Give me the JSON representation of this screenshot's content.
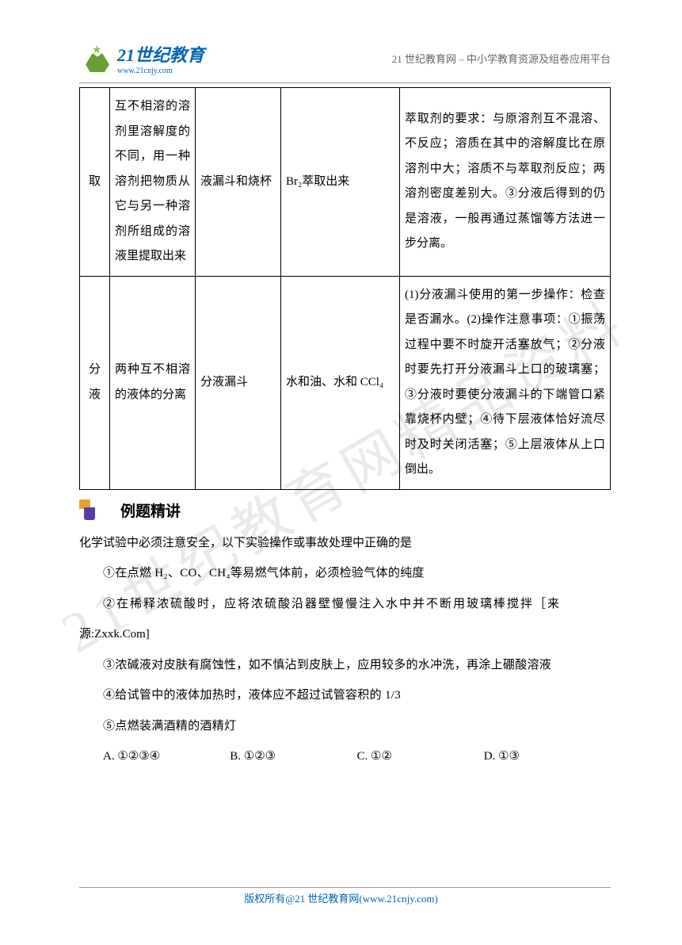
{
  "header": {
    "logo_title": "21世纪教育",
    "logo_url": "www.21cnjy.com",
    "right_text": "21 世纪教育网 – 中小学教育资源及组卷应用平台"
  },
  "watermark": "21世纪教育网精品资料",
  "table": {
    "rows": [
      {
        "c1": "取",
        "c2": "互不相溶的溶剂里溶解度的不同，用一种溶剂把物质从它与另一种溶剂所组成的溶液里提取出来",
        "c3": "液漏斗和烧杯",
        "c4": "Br₂萃取出来",
        "c5": "萃取剂的要求：与原溶剂互不混溶、不反应；溶质在其中的溶解度比在原溶剂中大；溶质不与萃取剂反应；两溶剂密度差别大。③分液后得到的仍是溶液，一般再通过蒸馏等方法进一步分离。"
      },
      {
        "c1": "分液",
        "c2": "两种互不相溶的液体的分离",
        "c3": "分液漏斗",
        "c4": "水和油、水和 CCl₄",
        "c5": "(1)分液漏斗使用的第一步操作：检查是否漏水。(2)操作注意事项：①振荡过程中要不时旋开活塞放气；②分液时要先打开分液漏斗上口的玻璃塞；③分液时要使分液漏斗的下端管口紧靠烧杯内壁；④待下层液体恰好流尽时及时关闭活塞；⑤上层液体从上口倒出。"
      }
    ]
  },
  "section": {
    "title": "例题精讲"
  },
  "question": {
    "stem": "化学试验中必须注意安全，以下实验操作或事故处理中正确的是",
    "items": [
      "①在点燃 H₂、CO、CH₄等易燃气体前，必须检验气体的纯度",
      "②在稀释浓硫酸时，应将浓硫酸沿器壁慢慢注入水中并不断用玻璃棒搅拌［来",
      "③浓碱液对皮肤有腐蚀性，如不慎沾到皮肤上，应用较多的水冲洗，再涂上硼酸溶液",
      "④给试管中的液体加热时，液体应不超过试管容积的 1/3",
      "⑤点燃装满酒精的酒精灯"
    ],
    "source_line": "源:Zxxk.Com]",
    "options": {
      "a": "A. ①②③④",
      "b": "B. ①②③",
      "c": "C. ①②",
      "d": "D. ①③"
    }
  },
  "footer": {
    "text": "版权所有@21 世纪教育网(www.21cnjy.com)"
  }
}
